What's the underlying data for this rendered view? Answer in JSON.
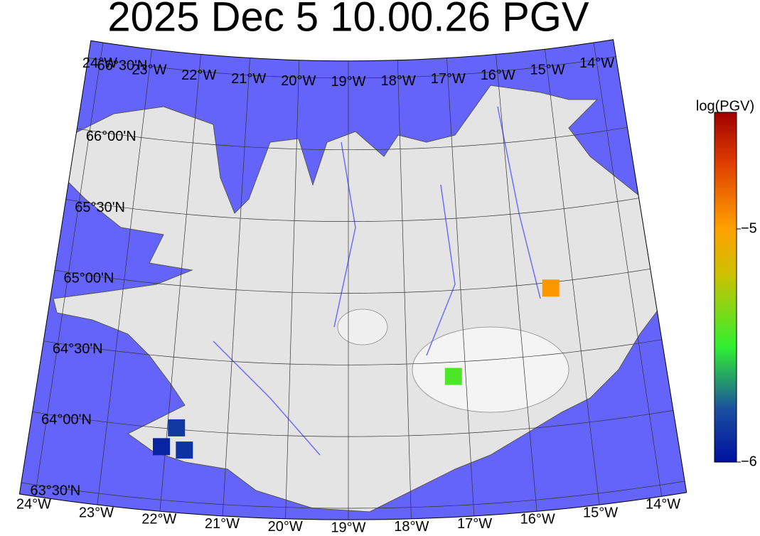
{
  "map": {
    "title": "2025 Dec 5 10.00.26 PGV",
    "lon_ticks": [
      {
        "value": -24,
        "label": "24°W"
      },
      {
        "value": -23,
        "label": "23°W"
      },
      {
        "value": -22,
        "label": "22°W"
      },
      {
        "value": -21,
        "label": "21°W"
      },
      {
        "value": -20,
        "label": "20°W"
      },
      {
        "value": -19,
        "label": "19°W"
      },
      {
        "value": -18,
        "label": "18°W"
      },
      {
        "value": -17,
        "label": "17°W"
      },
      {
        "value": -16,
        "label": "16°W"
      },
      {
        "value": -15,
        "label": "15°W"
      },
      {
        "value": -14,
        "label": "14°W"
      }
    ],
    "lat_ticks": [
      {
        "value": 63.5,
        "label": "63°30'N"
      },
      {
        "value": 64,
        "label": "64°00'N"
      },
      {
        "value": 64.5,
        "label": "64°30'N"
      },
      {
        "value": 65,
        "label": "65°00'N"
      },
      {
        "value": 65.5,
        "label": "65°30'N"
      },
      {
        "value": 66,
        "label": "66°00'N"
      },
      {
        "value": 66.5,
        "label": "66°30'N"
      }
    ],
    "colorbar": {
      "label": "log(PGV)",
      "lim": [
        -6,
        -4.5
      ],
      "ticks": [
        {
          "value": -5,
          "label": "−5"
        },
        {
          "value": -6,
          "label": "−6"
        }
      ]
    },
    "stations": [
      {
        "lon": -15.4,
        "lat": 64.96,
        "value": -4.97
      },
      {
        "lon": -17.21,
        "lat": 64.4,
        "value": -5.45
      },
      {
        "lon": -21.85,
        "lat": 64.01,
        "value": -5.85
      },
      {
        "lon": -22.07,
        "lat": 63.87,
        "value": -5.93
      },
      {
        "lon": -21.69,
        "lat": 63.86,
        "value": -5.88
      }
    ]
  }
}
